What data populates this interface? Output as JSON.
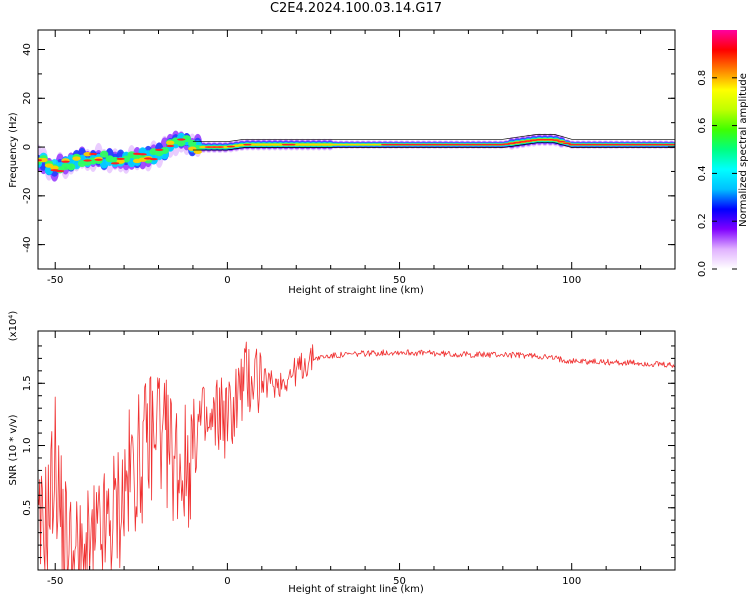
{
  "figure": {
    "title": "C2E4.2024.100.03.14.G17"
  },
  "colors": {
    "snr_line": "#f03030",
    "ridge": "#ff2020",
    "frame": "#000000"
  },
  "chart_data": [
    {
      "type": "heatmap",
      "title": "C2E4.2024.100.03.14.G17",
      "xlabel": "Height of straight line (km)",
      "ylabel": "Frequency (Hz)",
      "xlim": [
        -55,
        130
      ],
      "ylim": [
        -50,
        48
      ],
      "xticks": [
        "-50",
        "0",
        "50",
        "100"
      ],
      "yticks": [
        "-40",
        "-20",
        "0",
        "20",
        "40"
      ],
      "colorbar": {
        "label": "Normalized spectral amplitude",
        "range": [
          0,
          1
        ],
        "ticks": [
          "0.0",
          "0.2",
          "0.4",
          "0.6",
          "0.8"
        ],
        "colormap": [
          "#ffffff",
          "#e0b0ff",
          "#8000ff",
          "#0000ff",
          "#00c0ff",
          "#00ffff",
          "#00ff80",
          "#40ff00",
          "#c0ff00",
          "#ffff00",
          "#ff8000",
          "#ff0000",
          "#ff00a0"
        ]
      },
      "ridge": {
        "x": [
          -55,
          -50,
          -45,
          -40,
          -35,
          -30,
          -25,
          -20,
          -15,
          -12,
          -10,
          -5,
          0,
          5,
          10,
          20,
          30,
          50,
          70,
          80,
          90,
          95,
          100,
          110,
          130
        ],
        "y": [
          -5,
          -9,
          -6,
          -4,
          -5,
          -5,
          -4,
          -3,
          2,
          2,
          0,
          0,
          0,
          1,
          1,
          1,
          1,
          1,
          1,
          1,
          3,
          3,
          1,
          1,
          1
        ]
      }
    },
    {
      "type": "line",
      "xlabel": "Height of straight line (km)",
      "ylabel": "SNR (10 * v/v)",
      "y_multiplier": "(x10⁴)",
      "xlim": [
        -55,
        130
      ],
      "ylim": [
        0,
        1.92
      ],
      "xticks": [
        "-50",
        "0",
        "50",
        "100"
      ],
      "yticks": [
        "0.5",
        "1.0",
        "1.5"
      ],
      "series": [
        {
          "x": [
            -55,
            -52,
            -50,
            -48,
            -45,
            -42,
            -40,
            -38,
            -35,
            -32,
            -30,
            -28,
            -25,
            -22,
            -20,
            -18,
            -15,
            -12,
            -10,
            -8,
            -5,
            -2,
            0,
            3,
            5,
            8,
            10,
            15,
            20,
            25,
            30,
            40,
            50,
            60,
            70,
            80,
            90,
            95,
            100,
            110,
            120,
            130
          ],
          "y": [
            0.2,
            0.45,
            0.9,
            0.35,
            0.1,
            0.05,
            0.1,
            0.2,
            0.3,
            0.5,
            0.6,
            0.8,
            0.9,
            1.1,
            1.3,
            1.0,
            0.9,
            0.8,
            1.0,
            1.2,
            1.1,
            1.3,
            1.2,
            1.4,
            1.5,
            1.6,
            1.5,
            1.5,
            1.6,
            1.7,
            1.72,
            1.74,
            1.75,
            1.74,
            1.73,
            1.73,
            1.72,
            1.7,
            1.68,
            1.67,
            1.66,
            1.64
          ]
        }
      ]
    }
  ]
}
